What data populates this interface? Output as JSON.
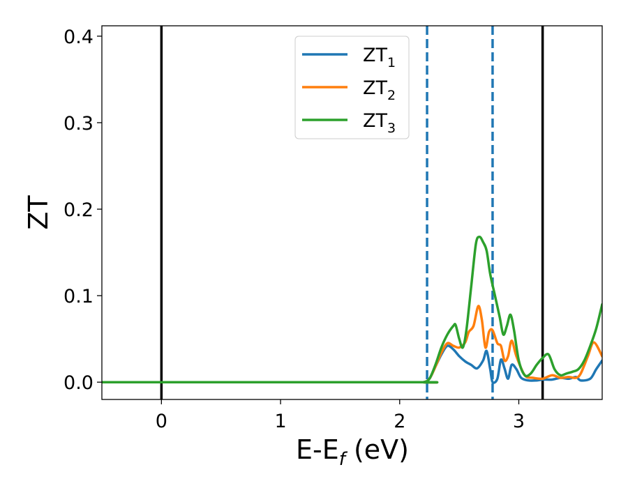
{
  "chart_data": {
    "type": "line",
    "title": "",
    "xlabel": {
      "main": "E-E",
      "sub": "f",
      "suffix": " (eV)"
    },
    "ylabel": "ZT",
    "xlim": [
      -0.5,
      3.7
    ],
    "ylim": [
      -0.02,
      0.412
    ],
    "xticks": [
      0,
      1,
      2,
      3
    ],
    "xtick_labels": [
      "0",
      "1",
      "2",
      "3"
    ],
    "yticks": [
      0.0,
      0.1,
      0.2,
      0.3,
      0.4
    ],
    "ytick_labels": [
      "0.0",
      "0.1",
      "0.2",
      "0.3",
      "0.4"
    ],
    "grid": false,
    "legend_position": "top-center",
    "vlines": [
      {
        "x": 0.0,
        "style": "solid",
        "color": "#000000"
      },
      {
        "x": 3.2,
        "style": "solid",
        "color": "#000000"
      },
      {
        "x": 2.23,
        "style": "dashed",
        "color": "#1f77b4"
      },
      {
        "x": 2.78,
        "style": "dashed",
        "color": "#1f77b4"
      }
    ],
    "series": [
      {
        "name": {
          "main": "ZT",
          "sub": "1"
        },
        "color": "#1f77b4",
        "x": [
          -0.5,
          2.1,
          2.2,
          2.25,
          2.3,
          2.35,
          2.4,
          2.45,
          2.5,
          2.55,
          2.6,
          2.65,
          2.7,
          2.73,
          2.76,
          2.78,
          2.82,
          2.85,
          2.88,
          2.91,
          2.94,
          2.98,
          3.02,
          3.08,
          3.15,
          3.2,
          3.28,
          3.35,
          3.42,
          3.48,
          3.52,
          3.6,
          3.65,
          3.7
        ],
        "y": [
          0.0,
          0.0,
          0.0,
          0.004,
          0.018,
          0.032,
          0.042,
          0.038,
          0.03,
          0.024,
          0.02,
          0.016,
          0.025,
          0.036,
          0.015,
          0.0,
          0.004,
          0.026,
          0.016,
          0.004,
          0.02,
          0.015,
          0.005,
          0.002,
          0.002,
          0.003,
          0.003,
          0.005,
          0.004,
          0.006,
          0.002,
          0.004,
          0.015,
          0.025
        ]
      },
      {
        "name": {
          "main": "ZT",
          "sub": "2"
        },
        "color": "#ff7f0e",
        "x": [
          -0.5,
          2.1,
          2.2,
          2.25,
          2.3,
          2.35,
          2.4,
          2.45,
          2.5,
          2.55,
          2.58,
          2.62,
          2.66,
          2.69,
          2.72,
          2.75,
          2.78,
          2.82,
          2.85,
          2.88,
          2.91,
          2.94,
          2.98,
          3.05,
          3.12,
          3.2,
          3.28,
          3.35,
          3.42,
          3.48,
          3.52,
          3.58,
          3.63,
          3.7
        ],
        "y": [
          0.0,
          0.0,
          0.0,
          0.004,
          0.018,
          0.034,
          0.045,
          0.042,
          0.04,
          0.046,
          0.058,
          0.065,
          0.088,
          0.072,
          0.04,
          0.058,
          0.06,
          0.045,
          0.042,
          0.025,
          0.03,
          0.048,
          0.03,
          0.008,
          0.005,
          0.004,
          0.008,
          0.005,
          0.006,
          0.005,
          0.01,
          0.03,
          0.046,
          0.03
        ]
      },
      {
        "name": {
          "main": "ZT",
          "sub": "3"
        },
        "color": "#2ca02c",
        "x": [
          -0.5,
          2.1,
          2.2,
          2.25,
          2.3,
          2.35,
          2.4,
          2.45,
          2.47,
          2.5,
          2.53,
          2.56,
          2.6,
          2.64,
          2.67,
          2.7,
          2.73,
          2.76,
          2.8,
          2.84,
          2.87,
          2.9,
          2.93,
          2.96,
          3.0,
          3.05,
          3.1,
          3.15,
          3.2,
          3.25,
          3.3,
          3.35,
          3.4,
          3.45,
          3.5,
          3.55,
          3.6,
          3.65,
          3.7
        ],
        "y": [
          0.0,
          0.0,
          0.0,
          0.004,
          0.02,
          0.04,
          0.055,
          0.065,
          0.066,
          0.05,
          0.04,
          0.06,
          0.11,
          0.16,
          0.168,
          0.162,
          0.152,
          0.125,
          0.1,
          0.075,
          0.055,
          0.065,
          0.078,
          0.06,
          0.025,
          0.008,
          0.01,
          0.02,
          0.028,
          0.032,
          0.015,
          0.008,
          0.01,
          0.012,
          0.015,
          0.025,
          0.042,
          0.062,
          0.09
        ]
      }
    ]
  }
}
